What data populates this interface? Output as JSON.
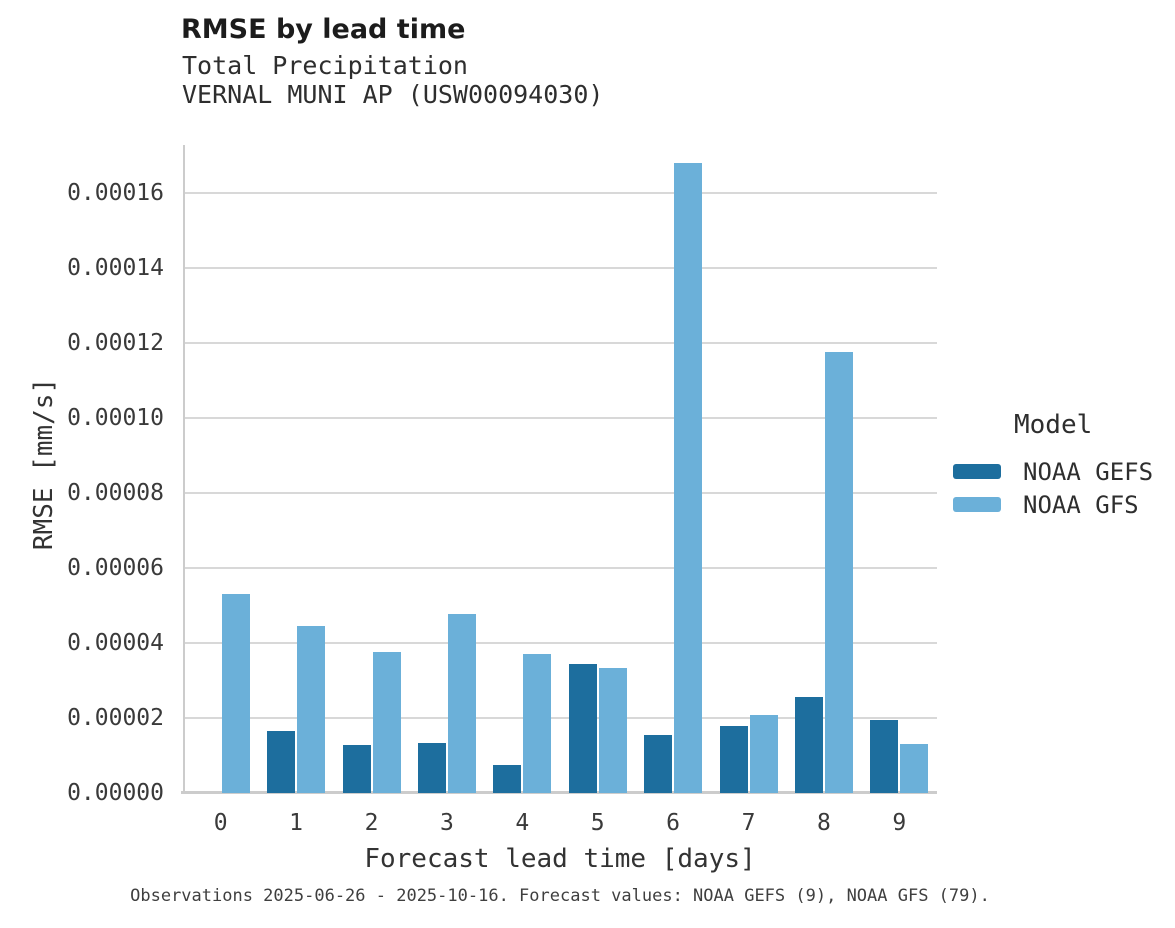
{
  "chart_data": {
    "type": "bar",
    "title": "RMSE by lead time",
    "subtitle_line1": "Total Precipitation",
    "subtitle_line2": "VERNAL MUNI AP (USW00094030)",
    "xlabel": "Forecast lead time [days]",
    "ylabel": "RMSE [mm/s]",
    "legend_title": "Model",
    "legend_position": "right",
    "grid": "horizontal",
    "caption": "Observations 2025-06-26 - 2025-10-16. Forecast values: NOAA GEFS (9), NOAA GFS (79).",
    "categories": [
      "0",
      "1",
      "2",
      "3",
      "4",
      "5",
      "6",
      "7",
      "8",
      "9"
    ],
    "series": [
      {
        "name": "NOAA GEFS",
        "color": "#1d6e9e",
        "values": [
          null,
          1.65e-05,
          1.28e-05,
          1.33e-05,
          7.5e-06,
          3.43e-05,
          1.55e-05,
          1.79e-05,
          2.56e-05,
          1.95e-05
        ]
      },
      {
        "name": "NOAA GFS",
        "color": "#6bb0d9",
        "values": [
          5.3e-05,
          4.44e-05,
          3.77e-05,
          4.77e-05,
          3.7e-05,
          3.33e-05,
          0.000168,
          2.09e-05,
          0.0001174,
          1.3e-05
        ]
      }
    ],
    "ylim": [
      0,
      0.0001727
    ],
    "yticks": {
      "values": [
        0,
        2e-05,
        4e-05,
        6e-05,
        8e-05,
        0.0001,
        0.00012,
        0.00014,
        0.00016
      ],
      "labels": [
        "0.00000",
        "0.00002",
        "0.00004",
        "0.00006",
        "0.00008",
        "0.00010",
        "0.00012",
        "0.00014",
        "0.00016"
      ]
    },
    "colors": {
      "grid": "#d8d8d8",
      "spine": "#cccccc"
    }
  }
}
